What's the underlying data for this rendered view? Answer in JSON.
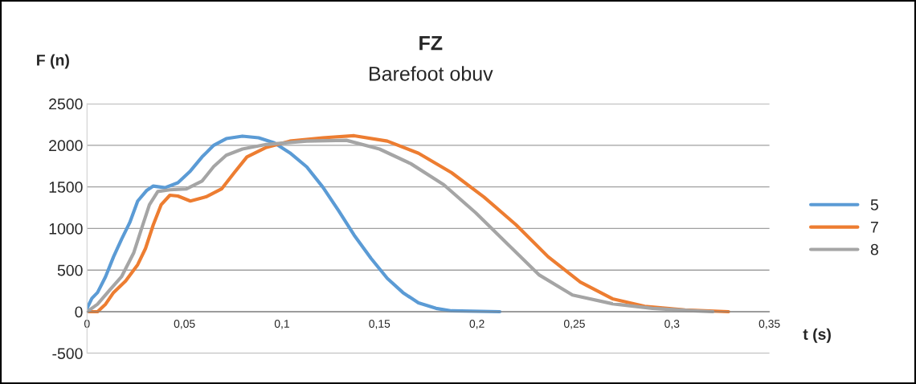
{
  "chart_data": {
    "type": "line",
    "title": "FZ",
    "subtitle": "Barefoot obuv",
    "xlabel": "t (s)",
    "ylabel": "F (n)",
    "xlim": [
      0,
      0.35
    ],
    "ylim": [
      -500,
      2500
    ],
    "xticks": [
      0,
      {
        "value": 0.05,
        "label": "0,05"
      },
      {
        "value": 0.1,
        "label": "0,1"
      },
      {
        "value": 0.15,
        "label": "0,15"
      },
      {
        "value": 0.2,
        "label": "0,2"
      },
      {
        "value": 0.25,
        "label": "0,25"
      },
      {
        "value": 0.3,
        "label": "0,3"
      },
      {
        "value": 0.35,
        "label": "0,35"
      }
    ],
    "yticks": [
      -500,
      0,
      500,
      1000,
      1500,
      2000,
      2500
    ],
    "grid": "y",
    "legend": "right",
    "marker": "none",
    "line_style": "solid",
    "series": [
      {
        "name": "5",
        "color": "#5b9bd5",
        "x": [
          0,
          0.0025,
          0.0054,
          0.0095,
          0.0136,
          0.0177,
          0.0219,
          0.026,
          0.0305,
          0.034,
          0.04,
          0.0466,
          0.053,
          0.059,
          0.065,
          0.0714,
          0.0797,
          0.088,
          0.096,
          0.104,
          0.1127,
          0.121,
          0.129,
          0.137,
          0.1457,
          0.154,
          0.162,
          0.17,
          0.179,
          0.187,
          0.2117
        ],
        "values": [
          40,
          160,
          230,
          420,
          660,
          870,
          1070,
          1330,
          1455,
          1510,
          1490,
          1550,
          1690,
          1860,
          2000,
          2080,
          2110,
          2090,
          2030,
          1910,
          1740,
          1495,
          1215,
          920,
          640,
          400,
          230,
          105,
          40,
          10,
          0
        ]
      },
      {
        "name": "7",
        "color": "#ed7d31",
        "x": [
          0,
          0.0054,
          0.0095,
          0.0136,
          0.0198,
          0.026,
          0.03,
          0.034,
          0.038,
          0.0425,
          0.0466,
          0.053,
          0.061,
          0.069,
          0.0755,
          0.082,
          0.092,
          0.104,
          0.121,
          0.137,
          0.154,
          0.17,
          0.187,
          0.2035,
          0.22,
          0.2365,
          0.253,
          0.2695,
          0.286,
          0.3067,
          0.329
        ],
        "values": [
          0,
          0,
          90,
          230,
          370,
          565,
          760,
          1045,
          1285,
          1400,
          1390,
          1330,
          1380,
          1475,
          1670,
          1860,
          1975,
          2050,
          2090,
          2115,
          2050,
          1905,
          1670,
          1380,
          1045,
          660,
          355,
          155,
          65,
          20,
          0
        ]
      },
      {
        "name": "8",
        "color": "#a5a5a5",
        "x": [
          0,
          0.0054,
          0.0116,
          0.0177,
          0.024,
          0.028,
          0.032,
          0.0363,
          0.0425,
          0.051,
          0.059,
          0.065,
          0.0714,
          0.0797,
          0.092,
          0.1127,
          0.133,
          0.15,
          0.166,
          0.183,
          0.1993,
          0.216,
          0.232,
          0.249,
          0.2695,
          0.29,
          0.311,
          0.321
        ],
        "values": [
          0,
          90,
          260,
          420,
          710,
          1000,
          1285,
          1445,
          1465,
          1475,
          1570,
          1745,
          1880,
          1955,
          2010,
          2050,
          2060,
          1955,
          1780,
          1525,
          1190,
          805,
          440,
          200,
          95,
          40,
          10,
          0
        ]
      }
    ]
  }
}
